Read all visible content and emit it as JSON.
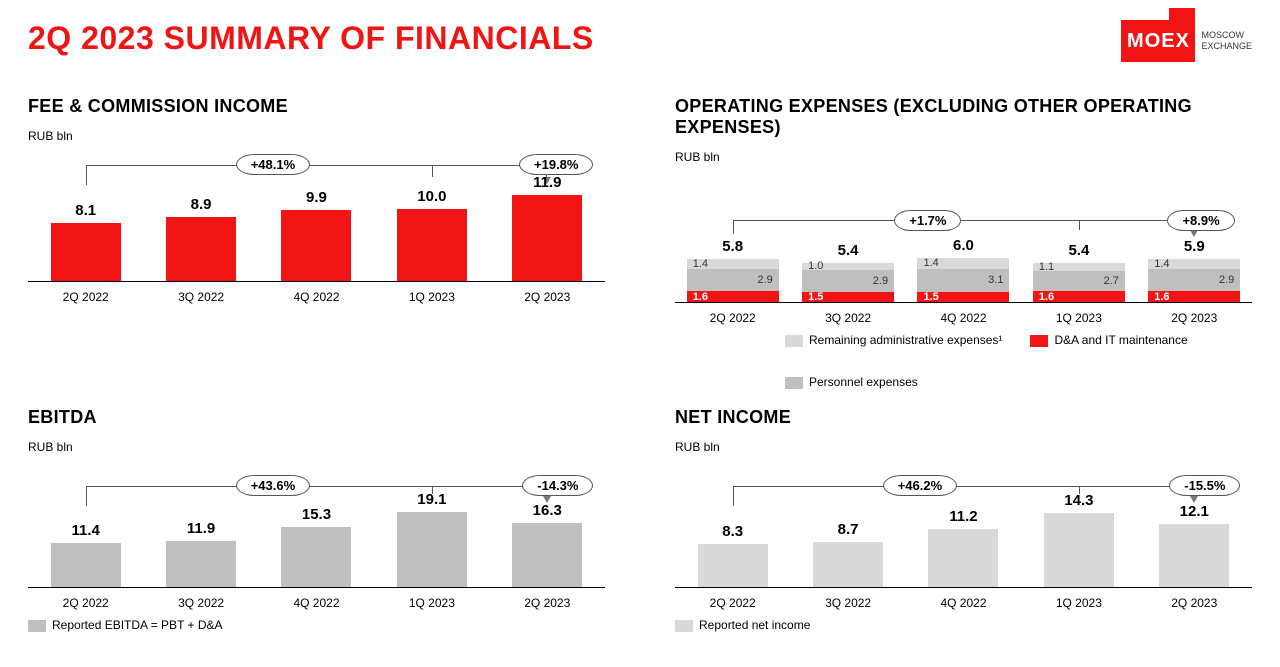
{
  "page_title": "2Q 2023 SUMMARY OF FINANCIALS",
  "logo": {
    "brand": "MOEX",
    "line1": "MOSCOW",
    "line2": "EXCHANGE",
    "color": "#f01414"
  },
  "colors": {
    "red": "#f01414",
    "grey_light": "#d9d9d9",
    "grey_mid": "#bfbfbf",
    "grey_dark": "#a6a6a6",
    "axis": "#000000"
  },
  "categories": [
    "2Q 2022",
    "3Q 2022",
    "4Q 2022",
    "1Q 2023",
    "2Q 2023"
  ],
  "panels": {
    "fee": {
      "title": "FEE & COMMISSION INCOME",
      "unit": "RUB bln",
      "type": "bar",
      "values": [
        8.1,
        8.9,
        9.9,
        10.0,
        11.9
      ],
      "bar_color": "#f01414",
      "ymax": 13,
      "yoy_label": "+48.1%",
      "qoq_label": "+19.8%"
    },
    "opex": {
      "title": "OPERATING EXPENSES (EXCLUDING OTHER OPERATING EXPENSES)",
      "unit": "RUB bln",
      "type": "stacked",
      "totals": [
        5.8,
        5.4,
        6.0,
        5.4,
        5.9
      ],
      "ymax": 13,
      "yoy_label": "+1.7%",
      "qoq_label": "+8.9%",
      "segments": {
        "remaining": {
          "label": "Remaining administrative expenses¹",
          "color": "#d9d9d9",
          "values": [
            1.4,
            1.0,
            1.4,
            1.1,
            1.4
          ]
        },
        "personnel": {
          "label": "Personnel expenses",
          "color": "#bfbfbf",
          "values": [
            2.9,
            2.9,
            3.1,
            2.7,
            2.9
          ]
        },
        "da_it": {
          "label": "D&A and IT maintenance",
          "color": "#f01414",
          "values": [
            1.6,
            1.5,
            1.5,
            1.6,
            1.6
          ]
        }
      }
    },
    "ebitda": {
      "title": "EBITDA",
      "unit": "RUB bln",
      "type": "bar",
      "values": [
        11.4,
        11.9,
        15.3,
        19.1,
        16.3
      ],
      "bar_color": "#bfbfbf",
      "ymax": 24,
      "yoy_label": "+43.6%",
      "qoq_label": "-14.3%",
      "legend_label": "Reported EBITDA = PBT + D&A"
    },
    "netincome": {
      "title": "NET INCOME",
      "unit": "RUB bln",
      "type": "bar",
      "values": [
        8.3,
        8.7,
        11.2,
        14.3,
        12.1
      ],
      "bar_color": "#d9d9d9",
      "ymax": 18,
      "yoy_label": "+46.2%",
      "qoq_label": "-15.5%",
      "legend_label": "Reported net income"
    }
  }
}
